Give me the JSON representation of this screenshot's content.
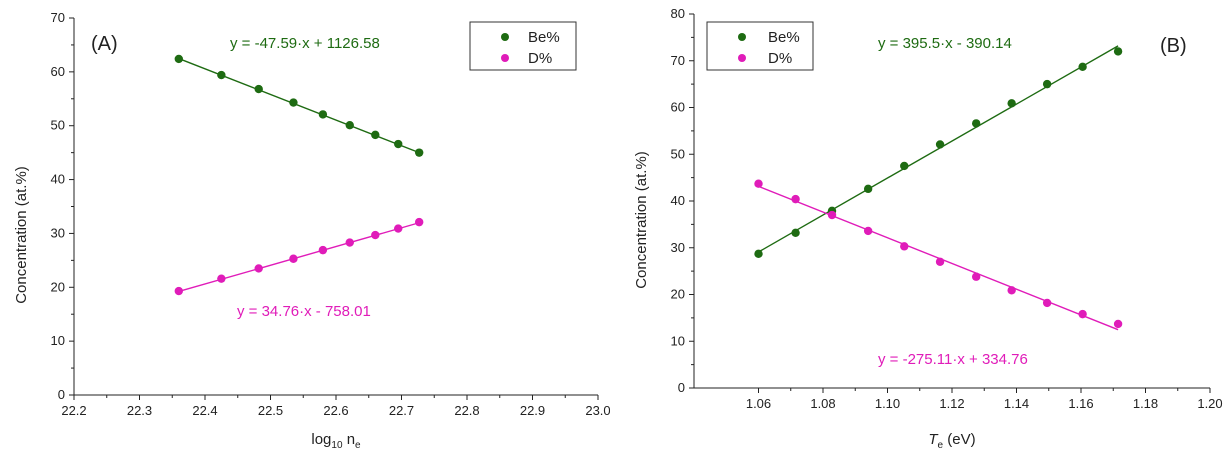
{
  "chart_data": [
    {
      "type": "scatter",
      "panel_label": "(A)",
      "xlabel": "log",
      "xlabel_sub": "10",
      "xlabel_rest": " n",
      "xlabel_sub2": "e",
      "ylabel": "Concentration (at.%)",
      "xlim": [
        22.2,
        23.0
      ],
      "ylim": [
        0,
        70
      ],
      "xticks": [
        "22.2",
        "22.3",
        "22.4",
        "22.5",
        "22.6",
        "22.7",
        "22.8",
        "22.9",
        "23.0"
      ],
      "yticks": [
        "0",
        "10",
        "20",
        "30",
        "40",
        "50",
        "60",
        "70"
      ],
      "legend_position": "top-right",
      "series": [
        {
          "name": "Be%",
          "color": "#1e6b12",
          "x": [
            22.36,
            22.425,
            22.482,
            22.535,
            22.58,
            22.621,
            22.66,
            22.695,
            22.727
          ],
          "y": [
            62.4,
            59.4,
            56.8,
            54.3,
            52.1,
            50.1,
            48.3,
            46.6,
            45.0
          ],
          "fit": {
            "slope": -47.59,
            "intercept": 1126.58,
            "x_range": [
              22.36,
              22.727
            ]
          },
          "equation": "y = -47.59·x + 1126.58"
        },
        {
          "name": "D%",
          "color": "#e01cb9",
          "x": [
            22.36,
            22.425,
            22.482,
            22.535,
            22.58,
            22.621,
            22.66,
            22.695,
            22.727
          ],
          "y": [
            19.3,
            21.6,
            23.5,
            25.3,
            26.9,
            28.3,
            29.7,
            30.9,
            32.1
          ],
          "fit": {
            "slope": 34.76,
            "intercept": -758.01,
            "x_range": [
              22.36,
              22.727
            ]
          },
          "equation": "y = 34.76·x - 758.01"
        }
      ]
    },
    {
      "type": "scatter",
      "panel_label": "(B)",
      "xlabel": "T",
      "xlabel_sub": "e",
      "xlabel_rest": " (eV)",
      "ylabel": "Concentration (at.%)",
      "xlim": [
        1.04,
        1.2
      ],
      "ylim": [
        0,
        80
      ],
      "xticks": [
        "1.06",
        "1.08",
        "1.10",
        "1.12",
        "1.14",
        "1.16",
        "1.18",
        "1.20"
      ],
      "yticks": [
        "0",
        "10",
        "20",
        "30",
        "40",
        "50",
        "60",
        "70",
        "80"
      ],
      "legend_position": "top-left",
      "series": [
        {
          "name": "Be%",
          "color": "#1e6b12",
          "x": [
            1.06,
            1.0715,
            1.0828,
            1.094,
            1.1052,
            1.1163,
            1.1275,
            1.1385,
            1.1495,
            1.1605,
            1.1715
          ],
          "y": [
            28.7,
            33.2,
            37.9,
            42.6,
            47.5,
            52.1,
            56.6,
            60.9,
            65.0,
            68.7,
            72.0
          ],
          "fit": {
            "slope": 395.5,
            "intercept": -390.14,
            "x_range": [
              1.06,
              1.1715
            ]
          },
          "equation": "y = 395.5·x - 390.14"
        },
        {
          "name": "D%",
          "color": "#e01cb9",
          "x": [
            1.06,
            1.0715,
            1.0828,
            1.094,
            1.1052,
            1.1163,
            1.1275,
            1.1385,
            1.1495,
            1.1605,
            1.1715
          ],
          "y": [
            43.7,
            40.4,
            37.0,
            33.6,
            30.3,
            27.0,
            23.8,
            20.9,
            18.2,
            15.8,
            13.7
          ],
          "fit": {
            "slope": -275.11,
            "intercept": 334.76,
            "x_range": [
              1.06,
              1.1715
            ]
          },
          "equation": "y = -275.11·x + 334.76"
        }
      ]
    }
  ]
}
